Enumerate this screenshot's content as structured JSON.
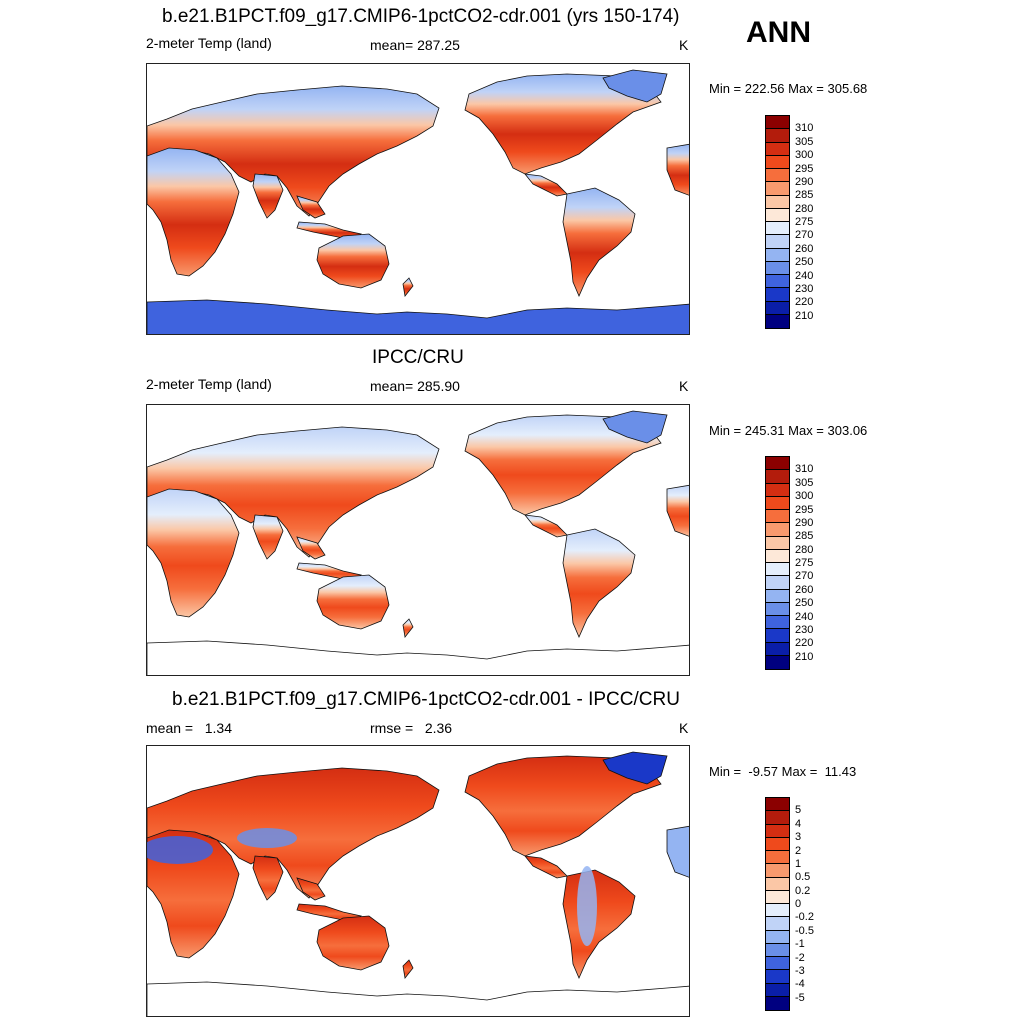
{
  "season": "ANN",
  "units": "K",
  "panels": [
    {
      "title": "b.e21.B1PCT.f09_g17.CMIP6-1pctCO2-cdr.001 (yrs 150-174)",
      "left_label": "2-meter Temp (land)",
      "center_label": "mean= 287.25",
      "units": "K",
      "range_text": "Min = 222.56 Max = 305.68",
      "colorbar": {
        "labels": [
          "310",
          "305",
          "300",
          "295",
          "290",
          "285",
          "280",
          "275",
          "270",
          "260",
          "250",
          "240",
          "230",
          "220",
          "210"
        ],
        "colors": [
          "#8b0000",
          "#b31c0c",
          "#d42e12",
          "#ef4a1c",
          "#f66e3c",
          "#f89a6e",
          "#fbc7a6",
          "#fde8d8",
          "#e4eefc",
          "#c0d3f7",
          "#94b4f2",
          "#6a8fe8",
          "#3f63de",
          "#1a38c8",
          "#0a1ea8",
          "#000080"
        ]
      },
      "map_style": "model"
    },
    {
      "title": "IPCC/CRU",
      "left_label": "2-meter Temp (land)",
      "center_label": "mean= 285.90",
      "units": "K",
      "range_text": "Min = 245.31 Max = 303.06",
      "colorbar": {
        "labels": [
          "310",
          "305",
          "300",
          "295",
          "290",
          "285",
          "280",
          "275",
          "270",
          "260",
          "250",
          "240",
          "230",
          "220",
          "210"
        ],
        "colors": [
          "#8b0000",
          "#b31c0c",
          "#d42e12",
          "#ef4a1c",
          "#f66e3c",
          "#f89a6e",
          "#fbc7a6",
          "#fde8d8",
          "#e4eefc",
          "#c0d3f7",
          "#94b4f2",
          "#6a8fe8",
          "#3f63de",
          "#1a38c8",
          "#0a1ea8",
          "#000080"
        ]
      },
      "map_style": "obs"
    },
    {
      "title": "b.e21.B1PCT.f09_g17.CMIP6-1pctCO2-cdr.001 - IPCC/CRU",
      "left_label": "mean =   1.34",
      "center_label": "rmse =   2.36",
      "units": "K",
      "range_text": "Min =  -9.57 Max =  11.43",
      "colorbar": {
        "labels": [
          "5",
          "4",
          "3",
          "2",
          "1",
          "0.5",
          "0.2",
          "0",
          "-0.2",
          "-0.5",
          "-1",
          "-2",
          "-3",
          "-4",
          "-5"
        ],
        "colors": [
          "#8b0000",
          "#b31c0c",
          "#d42e12",
          "#ef4a1c",
          "#f66e3c",
          "#f89a6e",
          "#fbc7a6",
          "#fde8d8",
          "#e4eefc",
          "#c0d3f7",
          "#94b4f2",
          "#6a8fe8",
          "#3f63de",
          "#1a38c8",
          "#0a1ea8",
          "#000080"
        ]
      },
      "map_style": "diff"
    }
  ]
}
